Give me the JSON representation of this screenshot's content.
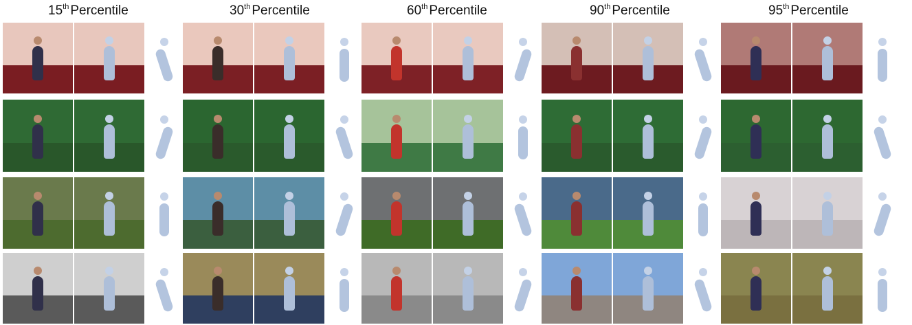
{
  "headers": [
    {
      "num": "15",
      "sup": "th",
      "word": "Percentile"
    },
    {
      "num": "30",
      "sup": "th",
      "word": "Percentile"
    },
    {
      "num": "60",
      "sup": "th",
      "word": "Percentile"
    },
    {
      "num": "90",
      "sup": "th",
      "word": "Percentile"
    },
    {
      "num": "95",
      "sup": "th",
      "word": "Percentile"
    }
  ],
  "colors": {
    "row1_wall": "#e8c7bd",
    "row1_floor": "#7a1d22",
    "row2_wall": "#2f6a34",
    "row2_floor": "#29572a",
    "mesh": "#aebfd9"
  }
}
